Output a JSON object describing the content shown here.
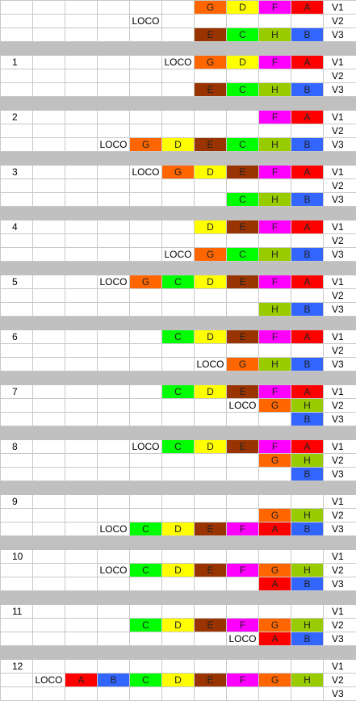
{
  "colors": {
    "A": "#ff0000",
    "B": "#3366ff",
    "C": "#00ff00",
    "D": "#ffff00",
    "E": "#993300",
    "F": "#ff00ff",
    "G": "#ff6600",
    "H": "#99cc00",
    "separator": "#c0c0c0"
  },
  "columns": 11,
  "blocks": [
    {
      "step": "",
      "rows": [
        {
          "track": "V1",
          "cells": {
            "6": "G",
            "7": "D",
            "8": "F",
            "9": "A"
          }
        },
        {
          "track": "V2",
          "cells": {
            "4": "LOCO"
          }
        },
        {
          "track": "V3",
          "cells": {
            "6": "E",
            "7": "C",
            "8": "H",
            "9": "B"
          }
        }
      ]
    },
    {
      "step": "1",
      "rows": [
        {
          "track": "V1",
          "cells": {
            "5": "LOCO",
            "6": "G",
            "7": "D",
            "8": "F",
            "9": "A"
          }
        },
        {
          "track": "V2",
          "cells": {}
        },
        {
          "track": "V3",
          "cells": {
            "6": "E",
            "7": "C",
            "8": "H",
            "9": "B"
          }
        }
      ]
    },
    {
      "step": "2",
      "rows": [
        {
          "track": "V1",
          "cells": {
            "8": "F",
            "9": "A"
          }
        },
        {
          "track": "V2",
          "cells": {}
        },
        {
          "track": "V3",
          "cells": {
            "3": "LOCO",
            "4": "G",
            "5": "D",
            "6": "E",
            "7": "C",
            "8": "H",
            "9": "B"
          }
        }
      ]
    },
    {
      "step": "3",
      "rows": [
        {
          "track": "V1",
          "cells": {
            "4": "LOCO",
            "5": "G",
            "6": "D",
            "7": "E",
            "8": "F",
            "9": "A"
          }
        },
        {
          "track": "V2",
          "cells": {}
        },
        {
          "track": "V3",
          "cells": {
            "7": "C",
            "8": "H",
            "9": "B"
          }
        }
      ]
    },
    {
      "step": "4",
      "rows": [
        {
          "track": "V1",
          "cells": {
            "6": "D",
            "7": "E",
            "8": "F",
            "9": "A"
          }
        },
        {
          "track": "V2",
          "cells": {}
        },
        {
          "track": "V3",
          "cells": {
            "5": "LOCO",
            "6": "G",
            "7": "C",
            "8": "H",
            "9": "B"
          }
        }
      ]
    },
    {
      "step": "5",
      "rows": [
        {
          "track": "V1",
          "cells": {
            "3": "LOCO",
            "4": "G",
            "5": "C",
            "6": "D",
            "7": "E",
            "8": "F",
            "9": "A"
          }
        },
        {
          "track": "V2",
          "cells": {}
        },
        {
          "track": "V3",
          "cells": {
            "8": "H",
            "9": "B"
          }
        }
      ]
    },
    {
      "step": "6",
      "rows": [
        {
          "track": "V1",
          "cells": {
            "5": "C",
            "6": "D",
            "7": "E",
            "8": "F",
            "9": "A"
          }
        },
        {
          "track": "V2",
          "cells": {}
        },
        {
          "track": "V3",
          "cells": {
            "6": "LOCO",
            "7": "G",
            "8": "H",
            "9": "B"
          }
        }
      ]
    },
    {
      "step": "7",
      "rows": [
        {
          "track": "V1",
          "cells": {
            "5": "C",
            "6": "D",
            "7": "E",
            "8": "F",
            "9": "A"
          }
        },
        {
          "track": "V2",
          "cells": {
            "7": "LOCO",
            "8": "G",
            "9": "H"
          }
        },
        {
          "track": "V3",
          "cells": {
            "9": "B"
          }
        }
      ]
    },
    {
      "step": "8",
      "rows": [
        {
          "track": "V1",
          "cells": {
            "4": "LOCO",
            "5": "C",
            "6": "D",
            "7": "E",
            "8": "F",
            "9": "A"
          }
        },
        {
          "track": "V2",
          "cells": {
            "8": "G",
            "9": "H"
          }
        },
        {
          "track": "V3",
          "cells": {
            "9": "B"
          }
        }
      ]
    },
    {
      "step": "9",
      "rows": [
        {
          "track": "V1",
          "cells": {}
        },
        {
          "track": "V2",
          "cells": {
            "8": "G",
            "9": "H"
          }
        },
        {
          "track": "V3",
          "cells": {
            "3": "LOCO",
            "4": "C",
            "5": "D",
            "6": "E",
            "7": "F",
            "8": "A",
            "9": "B"
          }
        }
      ]
    },
    {
      "step": "10",
      "rows": [
        {
          "track": "V1",
          "cells": {}
        },
        {
          "track": "V2",
          "cells": {
            "3": "LOCO",
            "4": "C",
            "5": "D",
            "6": "E",
            "7": "F",
            "8": "G",
            "9": "H"
          }
        },
        {
          "track": "V3",
          "cells": {
            "8": "A",
            "9": "B"
          }
        }
      ]
    },
    {
      "step": "11",
      "rows": [
        {
          "track": "V1",
          "cells": {}
        },
        {
          "track": "V2",
          "cells": {
            "4": "C",
            "5": "D",
            "6": "E",
            "7": "F",
            "8": "G",
            "9": "H"
          }
        },
        {
          "track": "V3",
          "cells": {
            "7": "LOCO",
            "8": "A",
            "9": "B"
          }
        }
      ]
    },
    {
      "step": "12",
      "rows": [
        {
          "track": "V1",
          "cells": {}
        },
        {
          "track": "V2",
          "cells": {
            "1": "LOCO",
            "2": "A",
            "3": "B",
            "4": "C",
            "5": "D",
            "6": "E",
            "7": "F",
            "8": "G",
            "9": "H"
          }
        },
        {
          "track": "V3",
          "cells": {}
        }
      ]
    }
  ]
}
